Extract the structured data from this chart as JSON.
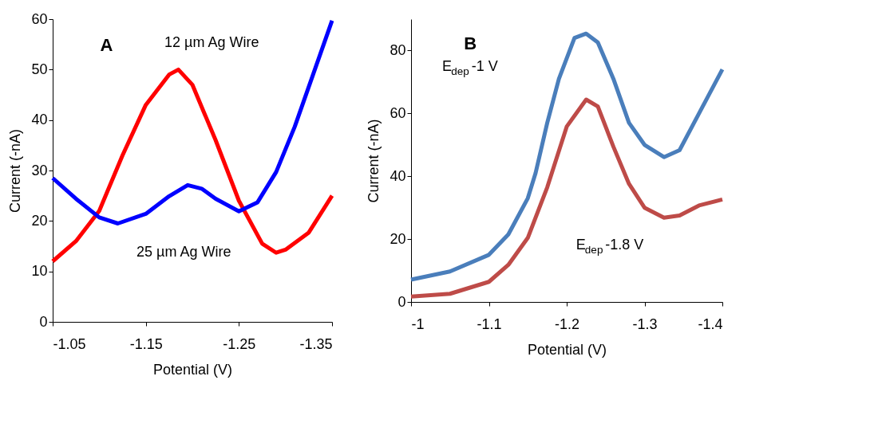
{
  "chart_data": [
    {
      "type": "line",
      "title": "A",
      "xlabel": "Potential (V)",
      "ylabel": "Current (-nA)",
      "xlim": [
        -1.05,
        -1.35
      ],
      "xticks": [
        -1.05,
        -1.15,
        -1.25,
        -1.35
      ],
      "ylim": [
        0,
        60
      ],
      "yticks": [
        0,
        10,
        20,
        30,
        40,
        50,
        60
      ],
      "grid": false,
      "marker": "none",
      "line_style": "solid",
      "annotations": [
        "12 µm Ag Wire",
        "25 µm Ag Wire"
      ],
      "series": [
        {
          "color": "#ff0000",
          "x": [
            -1.05,
            -1.075,
            -1.1,
            -1.125,
            -1.15,
            -1.175,
            -1.185,
            -1.2,
            -1.225,
            -1.25,
            -1.275,
            -1.29,
            -1.3,
            -1.325,
            -1.35
          ],
          "values": [
            12,
            16,
            22,
            33,
            43,
            49,
            50,
            47,
            36,
            24,
            15.5,
            13.7,
            14.3,
            17.7,
            25
          ]
        },
        {
          "color": "#0000ff",
          "x": [
            -1.05,
            -1.075,
            -1.1,
            -1.12,
            -1.15,
            -1.175,
            -1.195,
            -1.21,
            -1.225,
            -1.25,
            -1.27,
            -1.29,
            -1.31,
            -1.33,
            -1.35
          ],
          "values": [
            28.5,
            24.4,
            20.7,
            19.5,
            21.4,
            24.9,
            27.1,
            26.4,
            24.4,
            21.9,
            23.7,
            29.7,
            38.7,
            49.2,
            59.7
          ]
        }
      ]
    },
    {
      "type": "line",
      "title": "B",
      "xlabel": "Potential (V)",
      "ylabel": "Current (-nA)",
      "xlim": [
        -1,
        -1.4
      ],
      "xticks": [
        -1,
        -1.1,
        -1.2,
        -1.3,
        -1.4
      ],
      "ylim": [
        0,
        90
      ],
      "yticks": [
        0,
        20,
        40,
        60,
        80
      ],
      "grid": false,
      "marker": "none",
      "line_style": "solid",
      "annotations": [
        "E$_{dep}$ -1 V",
        "E$_{dep}$ -1.8 V"
      ],
      "series": [
        {
          "color": "#4a7ebb",
          "x": [
            -1,
            -1.05,
            -1.1,
            -1.125,
            -1.15,
            -1.16,
            -1.175,
            -1.19,
            -1.21,
            -1.225,
            -1.24,
            -1.26,
            -1.28,
            -1.3,
            -1.325,
            -1.345,
            -1.37,
            -1.4
          ],
          "values": [
            7.1,
            9.7,
            15,
            21.5,
            33,
            41,
            57,
            71,
            84,
            85.4,
            82.6,
            71,
            57,
            50,
            46.1,
            48.3,
            60,
            74
          ]
        },
        {
          "color": "#be4b48",
          "x": [
            -1,
            -1.05,
            -1.1,
            -1.125,
            -1.15,
            -1.175,
            -1.2,
            -1.225,
            -1.24,
            -1.26,
            -1.28,
            -1.3,
            -1.325,
            -1.345,
            -1.37,
            -1.4
          ],
          "values": [
            1.7,
            2.6,
            6.4,
            11.8,
            20.4,
            36.5,
            55.8,
            64.4,
            62.2,
            49.4,
            37.6,
            30,
            26.8,
            27.5,
            30.7,
            32.6
          ]
        }
      ]
    }
  ]
}
